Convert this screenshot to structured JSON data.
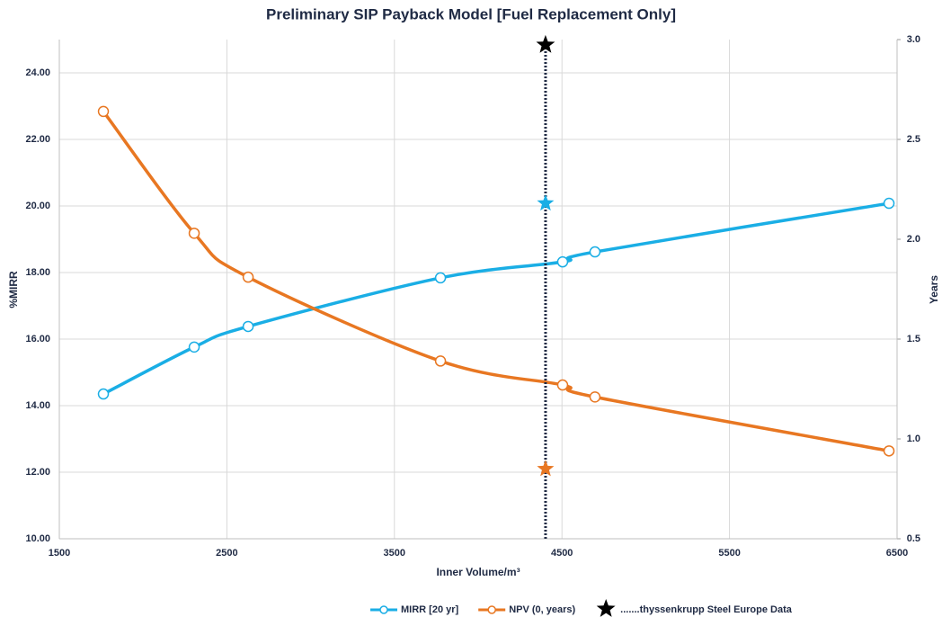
{
  "chart_data": {
    "type": "line",
    "title": "Preliminary SIP Payback Model [Fuel Replacement Only]",
    "x_label": "Inner Volume/m³",
    "y_label": "%MIRR",
    "y2_label": "Years",
    "xlim": [
      1500,
      6500
    ],
    "xticks": [
      1500,
      2500,
      3500,
      4500,
      5500,
      6500
    ],
    "ylim": [
      10,
      25
    ],
    "yticks": [
      {
        "value": 10,
        "label": "10.00"
      },
      {
        "value": 12,
        "label": "12.00"
      },
      {
        "value": 14,
        "label": "14.00"
      },
      {
        "value": 16,
        "label": "16.00"
      },
      {
        "value": 18,
        "label": "18.00"
      },
      {
        "value": 20,
        "label": "20.00"
      },
      {
        "value": 22,
        "label": "22.00"
      },
      {
        "value": 24,
        "label": "24.00"
      }
    ],
    "y2lim": [
      0.5,
      3.0
    ],
    "y2ticks": [
      0.5,
      {
        "value": 1,
        "label": "1.0"
      },
      1.5,
      {
        "value": 2,
        "label": "2.0"
      },
      2.5,
      {
        "value": 3,
        "label": "3.0"
      }
    ],
    "grid": true,
    "series": [
      {
        "name": "MIRR [20 yr]",
        "color": "#1aaee5",
        "x": [
          1763,
          2305,
          2627,
          3775,
          4504,
          4697,
          6452
        ],
        "values": [
          14.35,
          15.76,
          16.38,
          17.84,
          18.32,
          18.62,
          20.08
        ]
      },
      {
        "name": "NPV (0, years)",
        "color": "#e87722",
        "axis": "y2",
        "x": [
          1763,
          2305,
          2627,
          3775,
          4504,
          4697,
          6452
        ],
        "values": [
          2.64,
          2.03,
          1.81,
          1.39,
          1.27,
          1.21,
          0.94
        ]
      }
    ],
    "reference": {
      "name": ".......thyssenkrupp Steel Europe Data",
      "color": "#000000",
      "x": 4402,
      "top": 24.84,
      "mirr": 20.08,
      "npv": 0.85
    }
  }
}
